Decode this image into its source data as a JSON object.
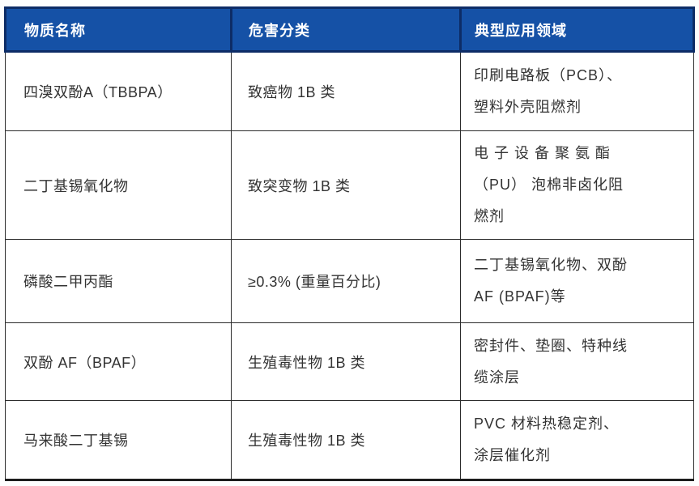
{
  "table": {
    "headers": [
      "物质名称",
      "危害分类",
      "典型应用领域"
    ],
    "rows": [
      {
        "substance": "四溴双酚A（TBBPA）",
        "hazard": "致癌物 1B 类",
        "applications": "印刷电路板（PCB）、\n塑料外壳阻燃剂"
      },
      {
        "substance": "二丁基锡氧化物",
        "hazard": "致突变物 1B 类",
        "applications": "电 子 设 备 聚 氨 酯\n（PU） 泡棉非卤化阻\n燃剂"
      },
      {
        "substance": "磷酸二甲丙酯",
        "hazard": "≥0.3% (重量百分比)",
        "applications": "二丁基锡氧化物、双酚\nAF (BPAF)等"
      },
      {
        "substance": "双酚 AF（BPAF）",
        "hazard": "生殖毒性物 1B 类",
        "applications": "密封件、垫圈、特种线\n缆涂层"
      },
      {
        "substance": "马来酸二丁基锡",
        "hazard": "生殖毒性物 1B 类",
        "applications": "PVC 材料热稳定剂、\n涂层催化剂"
      }
    ],
    "colors": {
      "header_bg": "#1551a6",
      "header_border": "#0d2c66",
      "header_text": "#ffffff",
      "body_border": "#2b2b2b",
      "body_text": "#333333"
    }
  }
}
